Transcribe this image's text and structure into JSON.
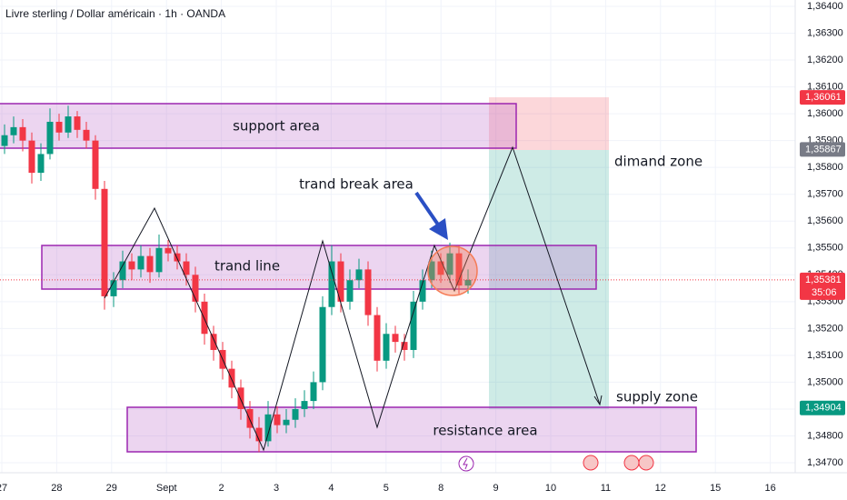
{
  "chart_data": {
    "type": "candlestick",
    "title": "Livre sterling / Dollar américain · 1h · OANDA",
    "x_labels": [
      "27",
      "28",
      "29",
      "Sept",
      "2",
      "3",
      "4",
      "5",
      "8",
      "9",
      "10",
      "11",
      "12",
      "15",
      "16"
    ],
    "ylim": [
      1.347,
      1.364
    ],
    "yticks": [
      {
        "value": 1.364,
        "label": "1,36400"
      },
      {
        "value": 1.363,
        "label": "1,36300"
      },
      {
        "value": 1.362,
        "label": "1,36200"
      },
      {
        "value": 1.361,
        "label": "1,36100"
      },
      {
        "value": 1.36,
        "label": "1,36000"
      },
      {
        "value": 1.359,
        "label": "1,35900"
      },
      {
        "value": 1.358,
        "label": "1,35800"
      },
      {
        "value": 1.357,
        "label": "1,35700"
      },
      {
        "value": 1.356,
        "label": "1,35600"
      },
      {
        "value": 1.355,
        "label": "1,35500"
      },
      {
        "value": 1.354,
        "label": "1,35400"
      },
      {
        "value": 1.353,
        "label": "1,35300"
      },
      {
        "value": 1.352,
        "label": "1,35200"
      },
      {
        "value": 1.351,
        "label": "1,35100"
      },
      {
        "value": 1.35,
        "label": "1,35000"
      },
      {
        "value": 1.349,
        "label": "1,34900"
      },
      {
        "value": 1.348,
        "label": "1,34800"
      },
      {
        "value": 1.347,
        "label": "1,34700"
      }
    ],
    "grid": true,
    "up_color": "#089981",
    "down_color": "#f23645",
    "candles": [
      [
        1.3588,
        1.3596,
        1.3585,
        1.3592
      ],
      [
        1.3592,
        1.3599,
        1.3589,
        1.3595
      ],
      [
        1.3595,
        1.3598,
        1.3586,
        1.359
      ],
      [
        1.359,
        1.3593,
        1.3574,
        1.3578
      ],
      [
        1.3578,
        1.3589,
        1.3575,
        1.3585
      ],
      [
        1.3585,
        1.3602,
        1.3583,
        1.3597
      ],
      [
        1.3597,
        1.36,
        1.359,
        1.3593
      ],
      [
        1.3593,
        1.3603,
        1.3591,
        1.3599
      ],
      [
        1.3599,
        1.3601,
        1.3591,
        1.3594
      ],
      [
        1.3594,
        1.3597,
        1.3587,
        1.359
      ],
      [
        1.359,
        1.3592,
        1.3568,
        1.3572
      ],
      [
        1.3572,
        1.3575,
        1.3527,
        1.3532
      ],
      [
        1.3532,
        1.3541,
        1.3528,
        1.3538
      ],
      [
        1.3538,
        1.3549,
        1.3535,
        1.3545
      ],
      [
        1.3545,
        1.3548,
        1.3538,
        1.3542
      ],
      [
        1.3542,
        1.3551,
        1.3539,
        1.3547
      ],
      [
        1.3547,
        1.355,
        1.3537,
        1.3541
      ],
      [
        1.3541,
        1.3555,
        1.3539,
        1.355
      ],
      [
        1.355,
        1.3553,
        1.3545,
        1.3548
      ],
      [
        1.3548,
        1.3551,
        1.3542,
        1.3545
      ],
      [
        1.3545,
        1.3548,
        1.3536,
        1.354
      ],
      [
        1.354,
        1.3543,
        1.3526,
        1.353
      ],
      [
        1.353,
        1.3533,
        1.3514,
        1.3518
      ],
      [
        1.3518,
        1.3521,
        1.3508,
        1.3512
      ],
      [
        1.3512,
        1.3515,
        1.3501,
        1.3505
      ],
      [
        1.3505,
        1.3508,
        1.3494,
        1.3498
      ],
      [
        1.3498,
        1.3501,
        1.3486,
        1.349
      ],
      [
        1.349,
        1.3493,
        1.3479,
        1.3483
      ],
      [
        1.3483,
        1.3487,
        1.3474,
        1.3478
      ],
      [
        1.3478,
        1.3493,
        1.3476,
        1.3488
      ],
      [
        1.3488,
        1.3491,
        1.3481,
        1.3484
      ],
      [
        1.3484,
        1.349,
        1.3481,
        1.3486
      ],
      [
        1.3486,
        1.3494,
        1.3483,
        1.349
      ],
      [
        1.349,
        1.3497,
        1.3487,
        1.3493
      ],
      [
        1.3493,
        1.3504,
        1.349,
        1.35
      ],
      [
        1.35,
        1.3532,
        1.3497,
        1.3528
      ],
      [
        1.3528,
        1.3551,
        1.3525,
        1.3545
      ],
      [
        1.3545,
        1.3548,
        1.3526,
        1.353
      ],
      [
        1.353,
        1.3542,
        1.3527,
        1.3538
      ],
      [
        1.3538,
        1.3546,
        1.3535,
        1.3542
      ],
      [
        1.3542,
        1.3545,
        1.3521,
        1.3525
      ],
      [
        1.3525,
        1.3528,
        1.3504,
        1.3508
      ],
      [
        1.3508,
        1.3522,
        1.3505,
        1.3518
      ],
      [
        1.3518,
        1.3521,
        1.3511,
        1.3515
      ],
      [
        1.3515,
        1.3518,
        1.3508,
        1.3512
      ],
      [
        1.3512,
        1.3534,
        1.3509,
        1.353
      ],
      [
        1.353,
        1.3542,
        1.3527,
        1.3538
      ],
      [
        1.3538,
        1.3549,
        1.3535,
        1.3545
      ],
      [
        1.3545,
        1.3548,
        1.3537,
        1.354
      ],
      [
        1.354,
        1.3552,
        1.3537,
        1.3548
      ],
      [
        1.3548,
        1.3551,
        1.3533,
        1.3536
      ],
      [
        1.3536,
        1.3542,
        1.3533,
        1.35381
      ]
    ],
    "price_labels": [
      {
        "value": 1.36061,
        "label": "1,36061",
        "color": "#f23645"
      },
      {
        "value": 1.35867,
        "label": "1,35867",
        "color": "#787b86"
      },
      {
        "value": 1.35381,
        "label": "1,35381",
        "color": "#f23645"
      },
      {
        "value": 1.34904,
        "label": "1,34904",
        "color": "#089981"
      }
    ],
    "countdown": "35:06",
    "annotations": {
      "support": "support area",
      "trend_line": "trand line",
      "resistance": "resistance area",
      "break": "trand break area",
      "demand": "dimand zone",
      "supply": "supply zone"
    }
  }
}
